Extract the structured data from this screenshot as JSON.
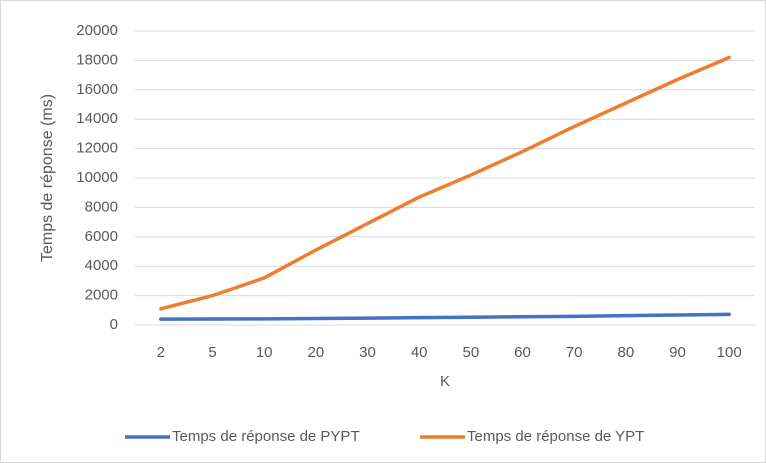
{
  "chart_data": {
    "type": "line",
    "x_label": "K",
    "y_label": "Temps de réponse (ms)",
    "categories": [
      "2",
      "5",
      "10",
      "20",
      "30",
      "40",
      "50",
      "60",
      "70",
      "80",
      "90",
      "100"
    ],
    "series": [
      {
        "name": "Temps de réponse de PYPT",
        "color": "#4472c4",
        "values": [
          400,
          410,
          420,
          440,
          470,
          500,
          530,
          560,
          590,
          640,
          680,
          720
        ]
      },
      {
        "name": "Temps de réponse de YPT",
        "color": "#ed7d31",
        "values": [
          1100,
          2000,
          3200,
          5100,
          6900,
          8700,
          10200,
          11800,
          13500,
          15100,
          16700,
          18200
        ]
      }
    ],
    "ylim": [
      0,
      20000
    ],
    "yticks": [
      0,
      2000,
      4000,
      6000,
      8000,
      10000,
      12000,
      14000,
      16000,
      18000,
      20000
    ],
    "grid": true,
    "legend": "bottom"
  }
}
